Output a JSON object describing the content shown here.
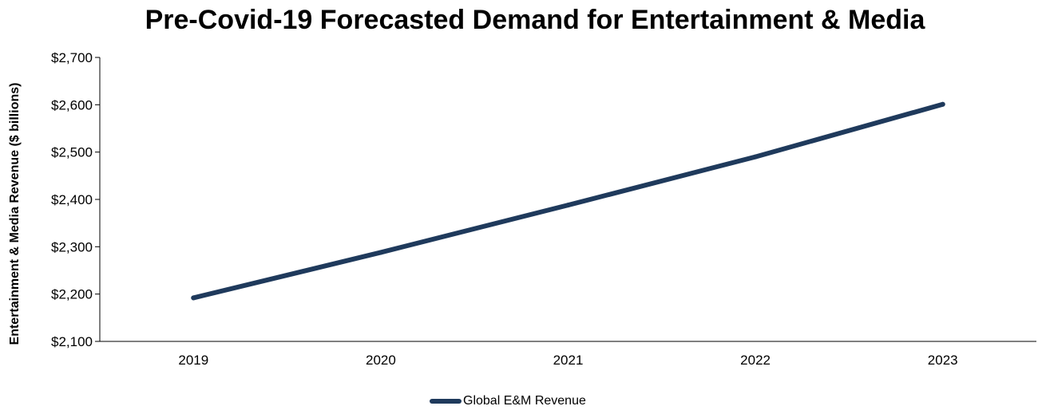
{
  "chart_data": {
    "type": "line",
    "title": "Pre-Covid-19 Forecasted Demand for Entertainment & Media",
    "xlabel": "",
    "ylabel": "Entertainment & Media Revenue ($ billions)",
    "categories": [
      "2019",
      "2020",
      "2021",
      "2022",
      "2023"
    ],
    "series": [
      {
        "name": "Global E&M Revenue",
        "values": [
          2192,
          2288,
          2388,
          2490,
          2601
        ],
        "color": "#1f3a5c"
      }
    ],
    "ylim": [
      2100,
      2700
    ],
    "yticks": [
      2100,
      2200,
      2300,
      2400,
      2500,
      2600,
      2700
    ],
    "ytick_labels": [
      "$2,100",
      "$2,200",
      "$2,300",
      "$2,400",
      "$2,500",
      "$2,600",
      "$2,700"
    ],
    "grid": false,
    "legend_position": "bottom-center"
  }
}
